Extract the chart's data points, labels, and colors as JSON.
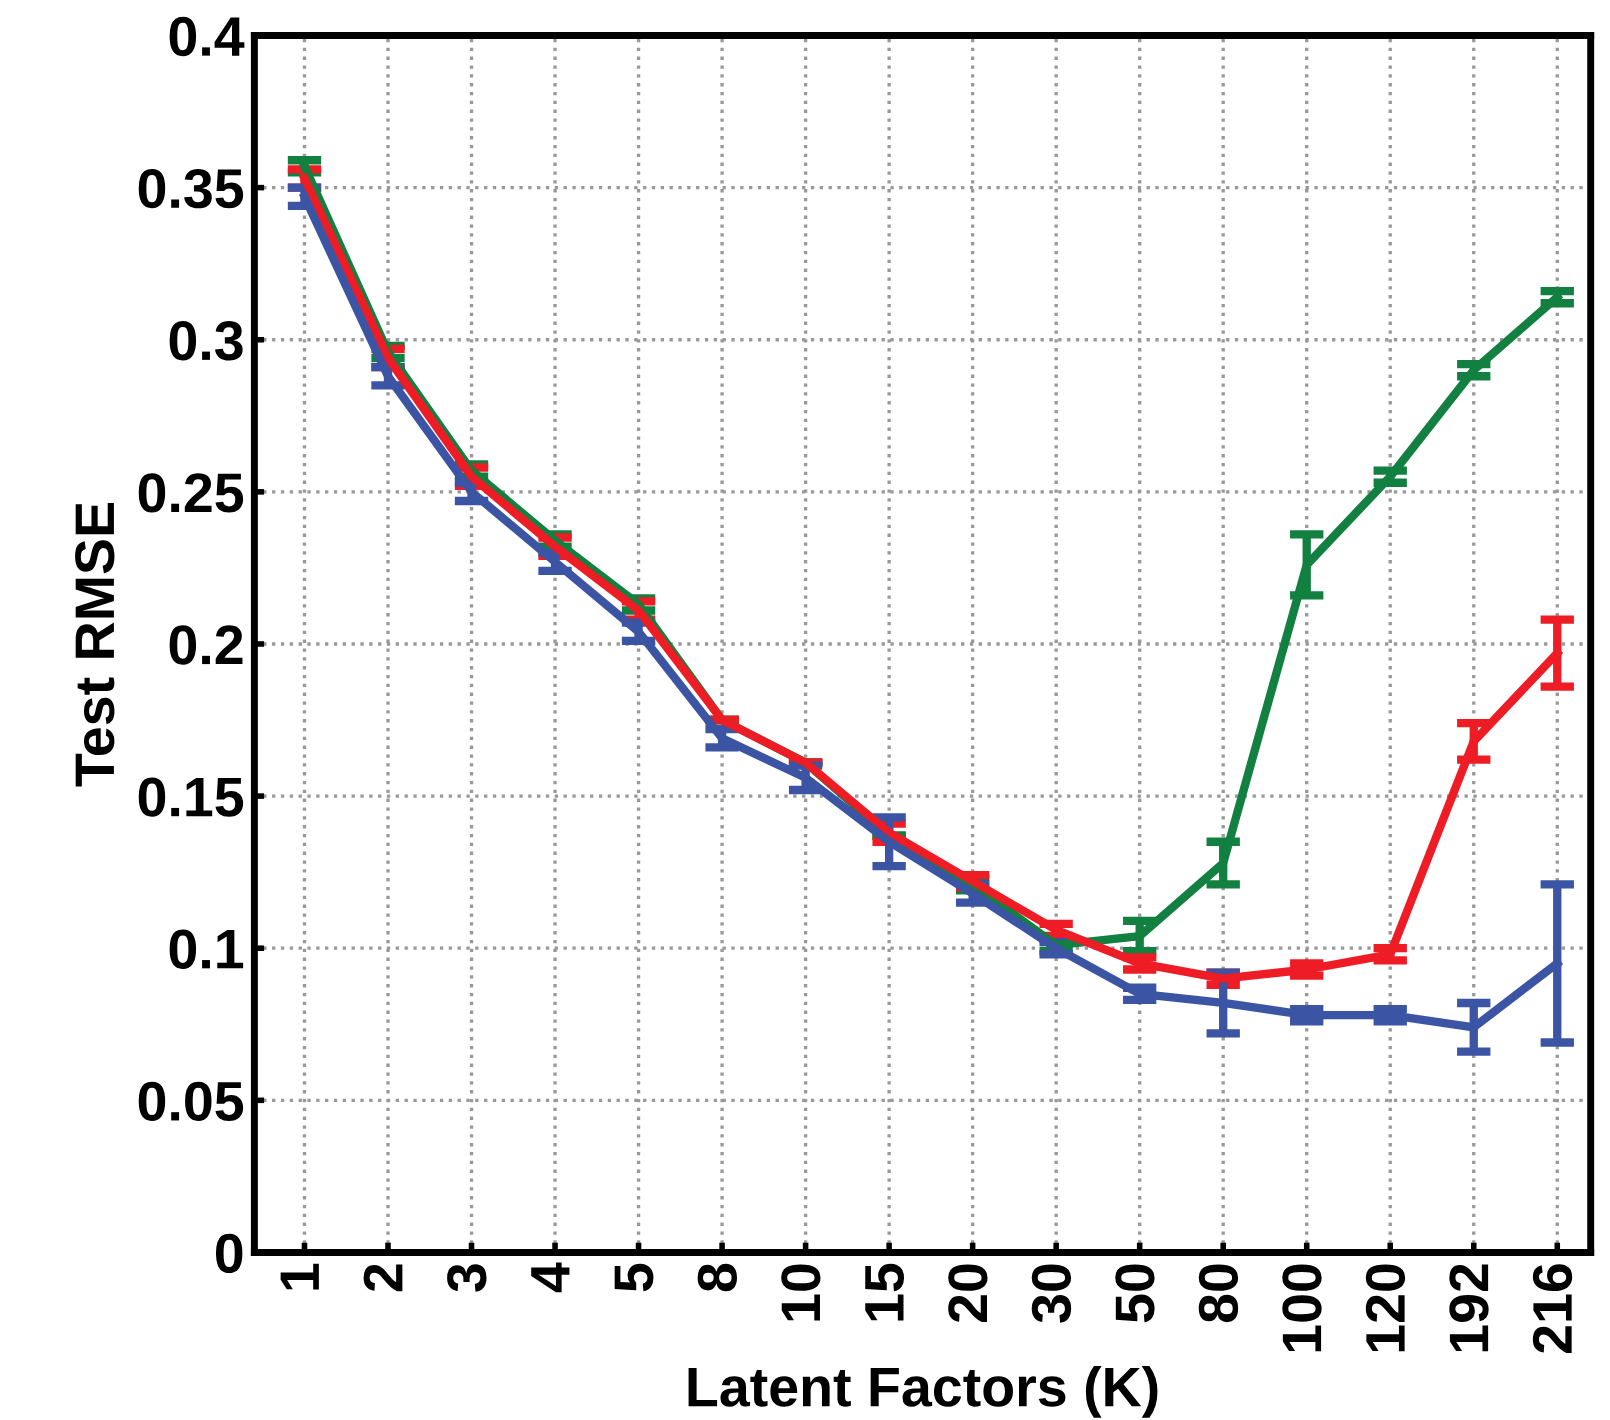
{
  "chart_data": {
    "type": "line",
    "xlabel": "Latent Factors (K)",
    "ylabel": "Test RMSE",
    "categories": [
      "1",
      "2",
      "3",
      "4",
      "5",
      "8",
      "10",
      "15",
      "20",
      "30",
      "50",
      "80",
      "100",
      "120",
      "192",
      "216"
    ],
    "ylim": [
      0,
      0.4
    ],
    "yticks": [
      0,
      0.05,
      0.1,
      0.15,
      0.2,
      0.25,
      0.3,
      0.35,
      0.4
    ],
    "grid": true,
    "legend": false,
    "marker": "none",
    "line_style": "solid",
    "series": [
      {
        "color": "#118040",
        "values": [
          0.357,
          0.296,
          0.257,
          0.234,
          0.213,
          0.175,
          0.161,
          0.137,
          0.121,
          0.101,
          0.104,
          0.128,
          0.226,
          0.255,
          0.29,
          0.314
        ],
        "errors": [
          0.002,
          0.002,
          0.002,
          0.002,
          0.002,
          null,
          null,
          null,
          0.002,
          0.002,
          0.005,
          0.007,
          0.01,
          0.002,
          0.002,
          0.002
        ]
      },
      {
        "color": "#ee1c24",
        "values": [
          0.353,
          0.294,
          0.255,
          0.232,
          0.211,
          0.175,
          0.161,
          0.138,
          0.122,
          0.106,
          0.095,
          0.09,
          0.093,
          0.098,
          0.168,
          0.197
        ],
        "errors": [
          0.003,
          0.003,
          0.003,
          0.003,
          0.003,
          null,
          null,
          0.003,
          0.002,
          0.002,
          0.002,
          0.002,
          0.002,
          0.002,
          0.006,
          0.011
        ]
      },
      {
        "color": "#3b54a4",
        "values": [
          0.347,
          0.288,
          0.25,
          0.227,
          0.204,
          0.169,
          0.156,
          0.135,
          0.118,
          0.1,
          0.085,
          0.082,
          0.078,
          0.078,
          0.074,
          0.095
        ],
        "errors": [
          0.003,
          0.003,
          0.003,
          0.003,
          0.003,
          0.003,
          0.004,
          0.008,
          0.003,
          0.002,
          0.002,
          0.01,
          0.002,
          0.002,
          0.008,
          0.026
        ]
      }
    ]
  }
}
